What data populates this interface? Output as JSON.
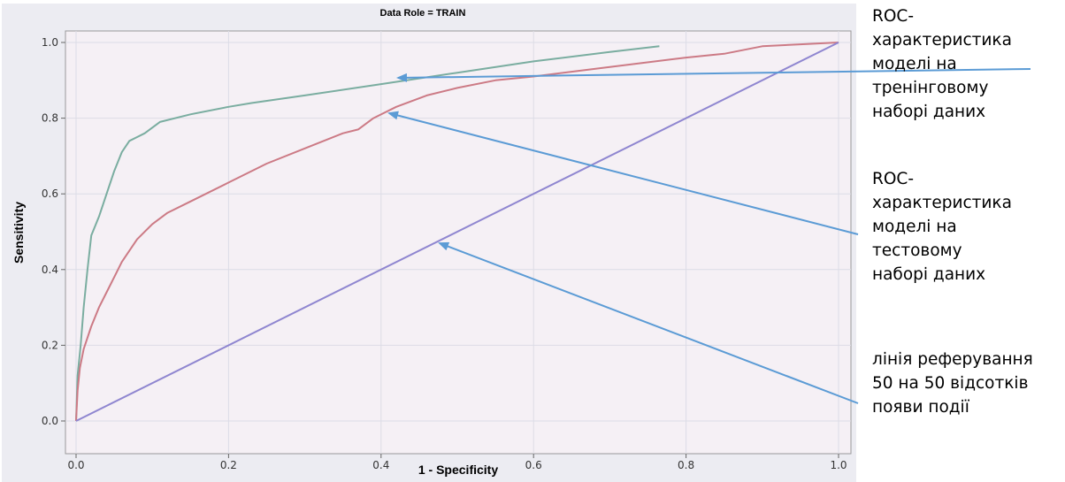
{
  "chart_data": {
    "type": "line",
    "title": "Data Role = TRAIN",
    "xlabel": "1 - Specificity",
    "ylabel": "Sensitivity",
    "xlim": [
      0,
      1
    ],
    "ylim": [
      0,
      1
    ],
    "xticks": [
      "0.0",
      "0.2",
      "0.4",
      "0.6",
      "0.8",
      "1.0"
    ],
    "yticks": [
      "0.0",
      "0.2",
      "0.4",
      "0.6",
      "0.8",
      "1.0"
    ],
    "grid": true,
    "series": [
      {
        "color": "#7aada0",
        "x": [
          0,
          0.002,
          0.006,
          0.01,
          0.015,
          0.02,
          0.03,
          0.04,
          0.05,
          0.06,
          0.07,
          0.08,
          0.09,
          0.1,
          0.11,
          0.15,
          0.2,
          0.23,
          0.3,
          0.4,
          0.5,
          0.6,
          0.7,
          0.765
        ],
        "y": [
          0,
          0.12,
          0.2,
          0.3,
          0.4,
          0.49,
          0.54,
          0.6,
          0.66,
          0.71,
          0.74,
          0.75,
          0.76,
          0.775,
          0.79,
          0.81,
          0.83,
          0.84,
          0.86,
          0.89,
          0.92,
          0.95,
          0.975,
          0.99
        ]
      },
      {
        "color": "#cc7a85",
        "x": [
          0,
          0.002,
          0.005,
          0.01,
          0.02,
          0.03,
          0.04,
          0.05,
          0.06,
          0.07,
          0.08,
          0.1,
          0.12,
          0.15,
          0.2,
          0.25,
          0.3,
          0.35,
          0.37,
          0.39,
          0.42,
          0.46,
          0.5,
          0.55,
          0.6,
          0.7,
          0.8,
          0.85,
          0.9,
          0.95,
          1.0
        ],
        "y": [
          0,
          0.08,
          0.14,
          0.19,
          0.25,
          0.3,
          0.34,
          0.38,
          0.42,
          0.45,
          0.48,
          0.52,
          0.55,
          0.58,
          0.63,
          0.68,
          0.72,
          0.76,
          0.77,
          0.8,
          0.83,
          0.86,
          0.88,
          0.9,
          0.91,
          0.935,
          0.96,
          0.97,
          0.99,
          0.995,
          1.0
        ]
      },
      {
        "color": "#8f86d0",
        "x": [
          0,
          1
        ],
        "y": [
          0,
          1
        ]
      }
    ]
  },
  "annotations": {
    "train": "ROC-\nхарактеристика\nмоделі на\nтренінговому\nнаборі даних",
    "test": "ROC-\nхарактеристика\nмоделі на\nтестовому\nнаборі даних",
    "reference": "лінія реферування\n50 на 50 відсотків\nпояви події"
  },
  "colors": {
    "panel_background": "#ececf2",
    "plot_background": "#f5f0f5",
    "grid": "#dcdce6",
    "arrow": "#5b9bd5"
  }
}
